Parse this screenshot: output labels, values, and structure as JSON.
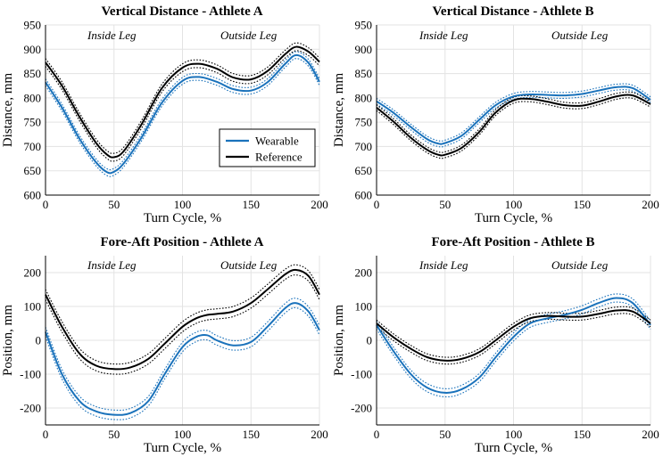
{
  "chart_data": [
    {
      "type": "line",
      "title": "Vertical Distance - Athlete A",
      "xlabel": "Turn Cycle, %",
      "ylabel": "Distance, mm",
      "xlim": [
        0,
        200
      ],
      "ylim": [
        600,
        950
      ],
      "xticks": [
        0,
        50,
        100,
        150,
        200
      ],
      "yticks": [
        600,
        650,
        700,
        750,
        800,
        850,
        900,
        950
      ],
      "annotations": [
        "Inside Leg",
        "Outside Leg"
      ],
      "legend": {
        "position": "center-right",
        "entries": [
          "Wearable",
          "Reference"
        ]
      },
      "x": [
        0,
        12,
        25,
        37,
        45,
        50,
        57,
        70,
        85,
        100,
        112,
        125,
        137,
        150,
        162,
        175,
        183,
        192,
        200
      ],
      "series": [
        {
          "name": "Wearable",
          "color": "#1a72bb",
          "band": 7,
          "values": [
            832,
            780,
            715,
            667,
            647,
            648,
            665,
            718,
            790,
            835,
            843,
            833,
            818,
            815,
            832,
            870,
            888,
            872,
            833
          ]
        },
        {
          "name": "Reference",
          "color": "#000000",
          "band": 8,
          "values": [
            873,
            825,
            760,
            707,
            683,
            678,
            690,
            745,
            820,
            862,
            870,
            860,
            842,
            838,
            855,
            890,
            905,
            895,
            874
          ]
        }
      ]
    },
    {
      "type": "line",
      "title": "Vertical Distance - Athlete B",
      "xlabel": "Turn Cycle, %",
      "ylabel": "Distance, mm",
      "xlim": [
        0,
        200
      ],
      "ylim": [
        600,
        950
      ],
      "xticks": [
        0,
        50,
        100,
        150,
        200
      ],
      "yticks": [
        600,
        650,
        700,
        750,
        800,
        850,
        900,
        950
      ],
      "annotations": [
        "Inside Leg",
        "Outside Leg"
      ],
      "x": [
        0,
        12,
        25,
        37,
        45,
        50,
        62,
        75,
        87,
        100,
        112,
        125,
        137,
        150,
        162,
        175,
        187,
        200
      ],
      "series": [
        {
          "name": "Wearable",
          "color": "#1a72bb",
          "band": 6,
          "values": [
            793,
            770,
            740,
            715,
            706,
            707,
            722,
            755,
            785,
            803,
            807,
            806,
            805,
            808,
            815,
            822,
            820,
            796
          ]
        },
        {
          "name": "Reference",
          "color": "#000000",
          "band": 6,
          "values": [
            780,
            752,
            718,
            693,
            683,
            683,
            697,
            730,
            770,
            795,
            798,
            792,
            785,
            784,
            792,
            803,
            805,
            787
          ]
        }
      ]
    },
    {
      "type": "line",
      "title": "Fore-Aft Position - Athlete A",
      "xlabel": "Turn Cycle, %",
      "ylabel": "Position, mm",
      "xlim": [
        0,
        200
      ],
      "ylim": [
        -250,
        250
      ],
      "xticks": [
        0,
        50,
        100,
        150,
        200
      ],
      "yticks": [
        -200,
        -100,
        0,
        100,
        200
      ],
      "annotations": [
        "Inside Leg",
        "Outside Leg"
      ],
      "x": [
        0,
        12,
        25,
        37,
        50,
        62,
        75,
        87,
        100,
        110,
        118,
        125,
        137,
        150,
        162,
        175,
        183,
        192,
        200
      ],
      "series": [
        {
          "name": "Wearable",
          "color": "#1a72bb",
          "band": 14,
          "values": [
            25,
            -100,
            -180,
            -210,
            -220,
            -215,
            -180,
            -100,
            -20,
            10,
            15,
            0,
            -15,
            -5,
            40,
            95,
            110,
            85,
            30
          ]
        },
        {
          "name": "Reference",
          "color": "#000000",
          "band": 15,
          "values": [
            135,
            40,
            -40,
            -75,
            -85,
            -80,
            -55,
            -10,
            40,
            65,
            75,
            78,
            85,
            110,
            150,
            195,
            208,
            190,
            135
          ]
        }
      ]
    },
    {
      "type": "line",
      "title": "Fore-Aft Position - Athlete B",
      "xlabel": "Turn Cycle, %",
      "ylabel": "Position, mm",
      "xlim": [
        0,
        200
      ],
      "ylim": [
        -250,
        250
      ],
      "xticks": [
        0,
        50,
        100,
        150,
        200
      ],
      "yticks": [
        -200,
        -100,
        0,
        100,
        200
      ],
      "annotations": [
        "Inside Leg",
        "Outside Leg"
      ],
      "x": [
        0,
        12,
        25,
        37,
        50,
        62,
        75,
        87,
        100,
        112,
        125,
        137,
        150,
        162,
        175,
        187,
        200
      ],
      "series": [
        {
          "name": "Wearable",
          "color": "#1a72bb",
          "band": 12,
          "values": [
            45,
            -30,
            -100,
            -140,
            -155,
            -145,
            -110,
            -50,
            10,
            50,
            65,
            75,
            90,
            110,
            125,
            110,
            45
          ]
        },
        {
          "name": "Reference",
          "color": "#000000",
          "band": 10,
          "values": [
            50,
            10,
            -25,
            -50,
            -60,
            -55,
            -35,
            0,
            40,
            65,
            72,
            70,
            70,
            78,
            88,
            85,
            50
          ]
        }
      ]
    }
  ]
}
